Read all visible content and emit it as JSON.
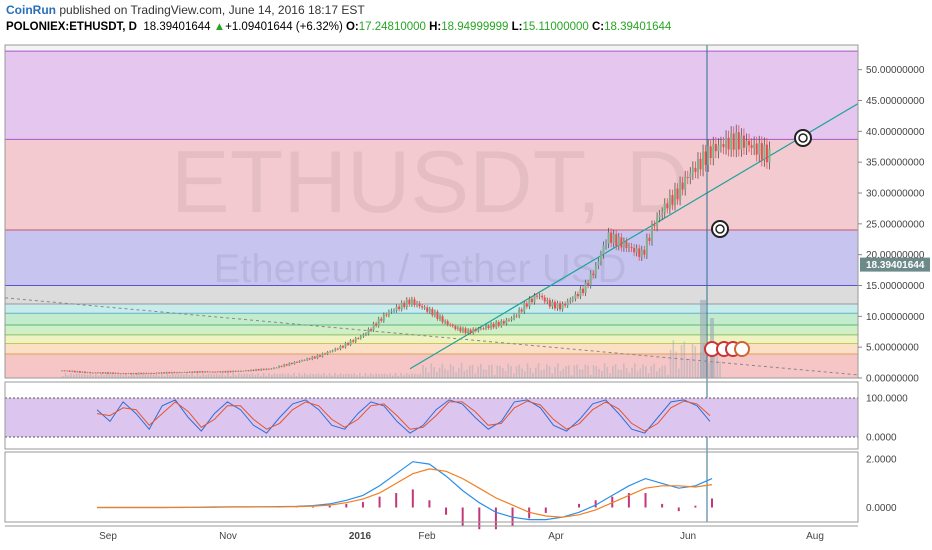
{
  "header": {
    "brand": "CoinRun",
    "published": "published on TradingView.com, June 14, 2016 18:17 EST",
    "symbol": "POLONIEX:ETHUSDT, D",
    "last": "18.39401644",
    "up_arrow": "▲",
    "change": "+1.09401644 (+6.32%)",
    "o_label": "O:",
    "o_value": "17.24810000",
    "h_label": "H:",
    "h_value": "18.94999999",
    "l_label": "L:",
    "l_value": "15.11000000",
    "c_label": "C:",
    "c_value": "18.39401644"
  },
  "watermark": {
    "line1": "ETHUSDT, D",
    "line2": "Ethereum / Tether USD"
  },
  "colors": {
    "up": "#26a524",
    "down": "#e94e4e",
    "candle": "#555555",
    "rsi_fast": "#2b6fd6",
    "rsi_slow": "#e6542a",
    "macd": "#2b8ee8",
    "signal": "#f07f22",
    "hist": "#c3367a",
    "trend": "#1aa39a",
    "price_tag": "#6d8a8a"
  },
  "chart_data": [
    {
      "type": "line",
      "pane": "price",
      "x_labels": [
        "Sep",
        "Nov",
        "2016",
        "Feb",
        "Apr",
        "Jun",
        "Aug"
      ],
      "y_ticks": [
        "50.00000000",
        "45.00000000",
        "40.00000000",
        "35.00000000",
        "30.00000000",
        "25.00000000",
        "20.00000000",
        "15.00000000",
        "10.00000000",
        "5.00000000",
        "0.00000000"
      ],
      "ylim": [
        0,
        54
      ],
      "last_price_label": "18.39401644",
      "fib_levels": [
        0,
        3.9,
        5.6,
        7.0,
        8.6,
        10.5,
        12.0,
        15.0,
        24.0,
        38.7,
        53.0
      ],
      "fib_colors": [
        "#f6c6c6",
        "#fbe0c6",
        "#eef3c1",
        "#d0efc7",
        "#c3eccf",
        "#c8ecec",
        "#dcdcdc",
        "#c7c5f0",
        "#f3cad0",
        "#e4c6ef"
      ],
      "fib_line_colors": [
        "#cc5555",
        "#e0a15a",
        "#c8c85a",
        "#88c266",
        "#5ab87a",
        "#5fb3c8",
        "#999999",
        "#5555cc",
        "#cc5566",
        "#aa55cc"
      ],
      "series": [
        {
          "name": "",
          "x": [
            0,
            10,
            20,
            30,
            40,
            50,
            60,
            70,
            80,
            90,
            100,
            110,
            120,
            130,
            140,
            150,
            155,
            160,
            165,
            170,
            175,
            180,
            185,
            190,
            195,
            200,
            205,
            210,
            215,
            220,
            225,
            230,
            235,
            240,
            245,
            250,
            255,
            260,
            265,
            270,
            275,
            280,
            285,
            290,
            295,
            300,
            305,
            310,
            315,
            320
          ],
          "y": [
            1.2,
            0.9,
            0.8,
            0.7,
            0.8,
            0.9,
            1.0,
            1.0,
            1.2,
            1.5,
            2.5,
            3.5,
            5.0,
            7.0,
            10.5,
            12.5,
            11.5,
            10.5,
            9.0,
            8.0,
            7.5,
            8.0,
            8.5,
            9.0,
            10.0,
            12.0,
            13.5,
            12.0,
            11.5,
            13.0,
            14.5,
            18.0,
            23.0,
            22.0,
            21.0,
            20.0,
            25.0,
            28.0,
            30.0,
            33.0,
            35.0,
            37.0,
            38.0,
            38.5,
            38.0,
            37.0,
            36.0,
            35.0,
            34.0,
            33.0
          ]
        }
      ],
      "candles_x_range": [
        62,
        305
      ]
    },
    {
      "type": "line",
      "pane": "stoch_rsi",
      "y_ticks": [
        "100.0000",
        "0.0000"
      ],
      "ylim": [
        0,
        100
      ],
      "series": [
        {
          "name": "",
          "values": [
            70,
            40,
            90,
            60,
            20,
            80,
            95,
            50,
            15,
            60,
            90,
            70,
            30,
            10,
            50,
            85,
            95,
            70,
            30,
            20,
            60,
            90,
            80,
            40,
            10,
            30,
            70,
            95,
            85,
            50,
            20,
            40,
            90,
            95,
            75,
            30,
            15,
            45,
            85,
            95,
            60,
            20,
            10,
            50,
            90,
            95,
            80,
            40
          ]
        },
        {
          "name": "",
          "values": [
            60,
            55,
            75,
            70,
            30,
            60,
            90,
            65,
            25,
            45,
            80,
            80,
            45,
            20,
            35,
            70,
            90,
            80,
            45,
            25,
            45,
            80,
            85,
            55,
            20,
            25,
            55,
            90,
            90,
            65,
            30,
            35,
            75,
            92,
            82,
            45,
            20,
            35,
            70,
            90,
            72,
            35,
            15,
            35,
            75,
            92,
            85,
            55
          ]
        }
      ]
    },
    {
      "type": "line",
      "pane": "macd",
      "y_ticks": [
        "2.0000",
        "0.0000"
      ],
      "ylim": [
        -0.6,
        2.3
      ],
      "series": [
        {
          "name": "",
          "values": [
            0.0,
            0.0,
            0.0,
            0.0,
            0.0,
            0.01,
            0.01,
            0.02,
            0.03,
            0.03,
            0.03,
            0.04,
            0.05,
            0.08,
            0.15,
            0.3,
            0.5,
            0.9,
            1.4,
            1.9,
            1.8,
            1.3,
            0.7,
            0.2,
            -0.2,
            -0.4,
            -0.5,
            -0.5,
            -0.4,
            -0.2,
            0.1,
            0.5,
            0.9,
            1.2,
            1.0,
            0.8,
            0.9,
            1.2
          ]
        },
        {
          "name": "",
          "values": [
            0.0,
            0.0,
            0.0,
            0.0,
            0.0,
            0.0,
            0.01,
            0.01,
            0.02,
            0.02,
            0.03,
            0.03,
            0.04,
            0.06,
            0.1,
            0.2,
            0.35,
            0.6,
            1.0,
            1.4,
            1.6,
            1.5,
            1.2,
            0.8,
            0.4,
            0.1,
            -0.2,
            -0.35,
            -0.4,
            -0.3,
            -0.1,
            0.2,
            0.5,
            0.8,
            0.9,
            0.9,
            0.85,
            0.95
          ]
        }
      ]
    }
  ]
}
